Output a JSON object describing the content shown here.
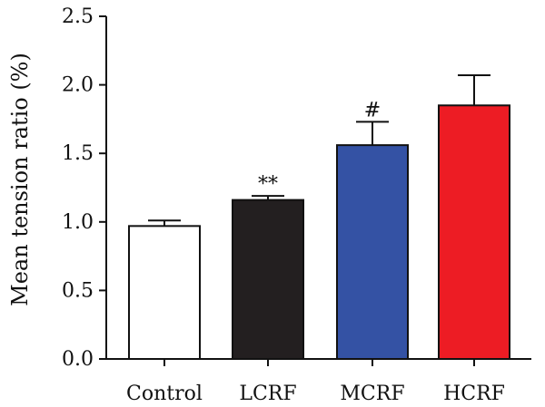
{
  "chart_data": {
    "type": "bar",
    "title": "",
    "xlabel": "",
    "ylabel": "Mean tension ratio (%)",
    "ylim": [
      0,
      2.5
    ],
    "yticks": [
      "0.0",
      "0.5",
      "1.0",
      "1.5",
      "2.0",
      "2.5"
    ],
    "categories": [
      "Control",
      "LCRF",
      "MCRF",
      "HCRF"
    ],
    "values": [
      0.97,
      1.16,
      1.56,
      1.85
    ],
    "errors": [
      0.04,
      0.03,
      0.17,
      0.22
    ],
    "colors": [
      "#ffffff",
      "#231f20",
      "#3452a4",
      "#ed1c24"
    ],
    "annotations": [
      "",
      "**",
      "#",
      ""
    ],
    "grid": false,
    "legend": "none"
  }
}
